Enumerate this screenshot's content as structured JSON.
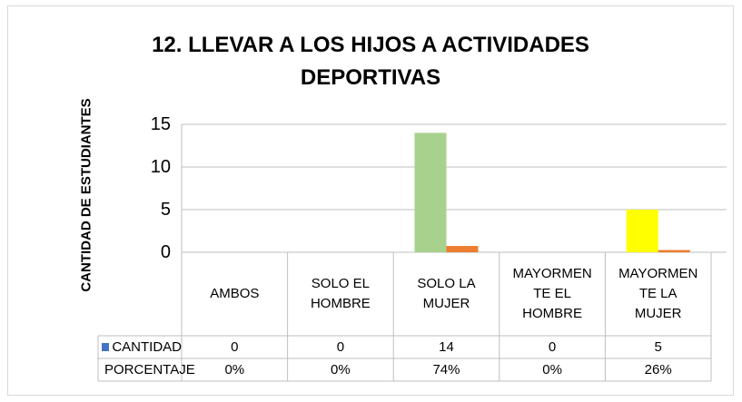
{
  "chart_data": {
    "type": "bar",
    "title": "12. LLEVAR A LOS HIJOS A ACTIVIDADES DEPORTIVAS",
    "y_label": "CANTIDAD DE ESTUDIANTES",
    "categories": [
      "AMBOS",
      "SOLO EL HOMBRE",
      "SOLO LA MUJER",
      "MAYORMENTE EL HOMBRE",
      "MAYORMENTE LA MUJER"
    ],
    "series": [
      {
        "name": "CANTIDAD",
        "color": "#4472c4",
        "point_colors": [
          "#4472c4",
          "#4472c4",
          "#a9d18e",
          "#4472c4",
          "#ffff00"
        ],
        "values": [
          0,
          0,
          14,
          0,
          5
        ]
      },
      {
        "name": "PORCENTAJE",
        "color": "#ed7d31",
        "values": [
          0,
          0,
          0.74,
          0,
          0.26
        ],
        "value_labels": [
          "0%",
          "0%",
          "74%",
          "0%",
          "26%"
        ]
      }
    ],
    "ylim": [
      0,
      15
    ],
    "yticks": [
      0,
      5,
      10,
      15
    ],
    "grid": true,
    "data_table": true
  }
}
